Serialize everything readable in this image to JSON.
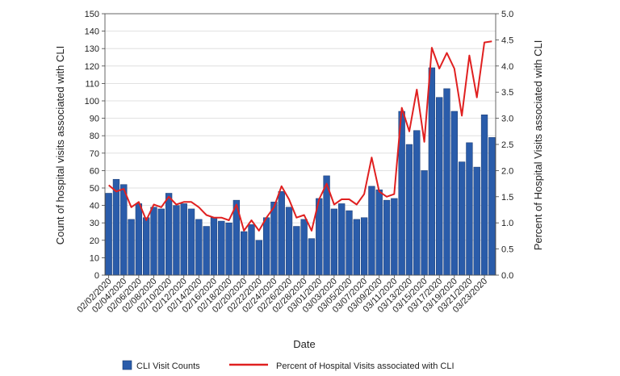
{
  "chart_data": {
    "type": "bar",
    "title": "",
    "xlabel": "Date",
    "ylabel": "Count of hospital visits associated with CLI",
    "y2label": "Percent of Hospital Visits associated with CLI",
    "ylim": [
      0,
      150
    ],
    "y2lim": [
      0,
      5.0
    ],
    "yticks": [
      "0",
      "10",
      "20",
      "30",
      "40",
      "50",
      "60",
      "70",
      "80",
      "90",
      "100",
      "110",
      "120",
      "130",
      "140",
      "150"
    ],
    "y2ticks": [
      "0.0",
      "0.5",
      "1.0",
      "1.5",
      "2.0",
      "2.5",
      "3.0",
      "3.5",
      "4.0",
      "4.5",
      "5.0"
    ],
    "xtick_labels": [
      "02/02/2020",
      "02/04/2020",
      "02/06/2020",
      "02/08/2020",
      "02/10/2020",
      "02/12/2020",
      "02/14/2020",
      "02/16/2020",
      "02/18/2020",
      "02/20/2020",
      "02/22/2020",
      "02/24/2020",
      "02/26/2020",
      "02/28/2020",
      "03/01/2020",
      "03/03/2020",
      "03/05/2020",
      "03/07/2020",
      "03/09/2020",
      "03/11/2020",
      "03/13/2020",
      "03/15/2020",
      "03/17/2020",
      "03/19/2020",
      "03/21/2020",
      "03/23/2020"
    ],
    "grid": true,
    "legend_position": "bottom",
    "series": [
      {
        "name": "CLI Visit Counts",
        "type": "bar",
        "axis": "left",
        "color": "#2a5caa",
        "values": [
          47,
          55,
          52,
          32,
          41,
          33,
          39,
          38,
          47,
          40,
          41,
          38,
          32,
          28,
          33,
          31,
          30,
          43,
          25,
          29,
          20,
          33,
          42,
          48,
          39,
          28,
          32,
          21,
          44,
          57,
          38,
          41,
          37,
          32,
          33,
          51,
          49,
          43,
          44,
          94,
          75,
          83,
          60,
          119,
          102,
          107,
          94,
          65,
          76,
          62,
          92,
          79
        ]
      },
      {
        "name": "Percent of Hospital Visits associated with CLI",
        "type": "line",
        "axis": "right",
        "color": "#e02020",
        "values": [
          1.72,
          1.6,
          1.65,
          1.3,
          1.4,
          1.05,
          1.35,
          1.3,
          1.5,
          1.35,
          1.4,
          1.4,
          1.3,
          1.15,
          1.1,
          1.1,
          1.05,
          1.35,
          0.85,
          1.05,
          0.85,
          1.1,
          1.3,
          1.7,
          1.45,
          1.1,
          1.15,
          0.85,
          1.45,
          1.75,
          1.35,
          1.45,
          1.45,
          1.35,
          1.55,
          2.25,
          1.6,
          1.5,
          1.55,
          3.2,
          2.75,
          3.55,
          2.55,
          4.35,
          3.95,
          4.25,
          3.95,
          3.05,
          4.2,
          3.4,
          4.45,
          4.47
        ]
      }
    ]
  }
}
